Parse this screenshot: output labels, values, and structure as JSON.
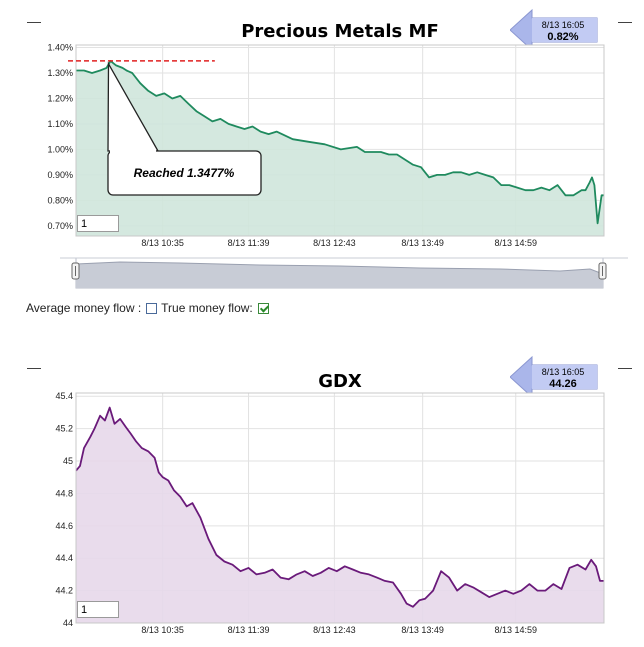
{
  "panel1": {
    "collapse_label": "—",
    "flag": {
      "timestamp": "8/13 16:05",
      "value": "0.82%"
    },
    "zoom_value": "1",
    "callout_text": "Reached 1.3477%",
    "toggles": {
      "avg_label": "Average money flow :",
      "avg_checked": false,
      "true_label": "True money flow:",
      "true_checked": true
    }
  },
  "panel2": {
    "collapse_label": "—",
    "flag": {
      "timestamp": "8/13 16:05",
      "value": "44.26"
    },
    "zoom_value": "1"
  },
  "colors": {
    "mf_line": "#1f8a5e",
    "mf_fill": "#cfe6dc",
    "gdx_line": "#6a1a7a",
    "gdx_fill": "#e7d8ea",
    "ref_line": "#e02020",
    "flag_arrow": "#a9b4e8"
  },
  "chart_data": [
    {
      "type": "area",
      "title": "Precious Metals MF",
      "y_tick_labels": [
        "1.40%",
        "1.30%",
        "1.20%",
        "1.10%",
        "1.00%",
        "0.90%",
        "0.80%",
        "0.70%"
      ],
      "ylim": [
        0.66,
        1.41
      ],
      "x_tick_labels": [
        "8/13 10:35",
        "8/13 11:39",
        "8/13 12:43",
        "8/13 13:49",
        "8/13 14:59"
      ],
      "x_tick_values": [
        10.58,
        11.65,
        12.72,
        13.82,
        14.98
      ],
      "xlim": [
        9.5,
        16.08
      ],
      "grid": true,
      "reference_line": {
        "y": 1.3477,
        "x": [
          9.5,
          11.23
        ]
      },
      "series": [
        {
          "x": [
            9.5,
            9.6,
            9.7,
            9.8,
            9.88,
            9.93,
            10.0,
            10.08,
            10.13,
            10.2,
            10.3,
            10.4,
            10.5,
            10.6,
            10.7,
            10.8,
            10.9,
            11.0,
            11.1,
            11.2,
            11.3,
            11.4,
            11.5,
            11.6,
            11.7,
            11.8,
            11.9,
            12.0,
            12.2,
            12.4,
            12.6,
            12.8,
            13.0,
            13.1,
            13.2,
            13.3,
            13.4,
            13.5,
            13.6,
            13.7,
            13.8,
            13.9,
            14.0,
            14.1,
            14.2,
            14.3,
            14.4,
            14.5,
            14.6,
            14.7,
            14.8,
            14.9,
            15.0,
            15.1,
            15.2,
            15.3,
            15.4,
            15.5,
            15.6,
            15.7,
            15.8,
            15.85,
            15.9,
            15.93,
            15.96,
            16.0,
            16.05,
            16.08
          ],
          "y": [
            1.31,
            1.31,
            1.3,
            1.31,
            1.32,
            1.3477,
            1.33,
            1.32,
            1.31,
            1.3,
            1.26,
            1.23,
            1.21,
            1.22,
            1.2,
            1.21,
            1.18,
            1.15,
            1.13,
            1.11,
            1.12,
            1.1,
            1.09,
            1.08,
            1.09,
            1.07,
            1.06,
            1.07,
            1.04,
            1.03,
            1.02,
            1.0,
            1.01,
            0.99,
            0.99,
            0.99,
            0.98,
            0.98,
            0.96,
            0.94,
            0.93,
            0.89,
            0.9,
            0.9,
            0.91,
            0.91,
            0.9,
            0.91,
            0.9,
            0.89,
            0.86,
            0.86,
            0.85,
            0.84,
            0.84,
            0.85,
            0.84,
            0.86,
            0.82,
            0.82,
            0.84,
            0.84,
            0.87,
            0.89,
            0.86,
            0.71,
            0.82,
            0.82
          ]
        }
      ]
    },
    {
      "type": "area",
      "title": "GDX",
      "y_tick_labels": [
        "45.4",
        "45.2",
        "45",
        "44.8",
        "44.6",
        "44.4",
        "44.2",
        "44"
      ],
      "ylim": [
        44.0,
        45.42
      ],
      "x_tick_labels": [
        "8/13 10:35",
        "8/13 11:39",
        "8/13 12:43",
        "8/13 13:49",
        "8/13 14:59"
      ],
      "x_tick_values": [
        10.58,
        11.65,
        12.72,
        13.82,
        14.98
      ],
      "xlim": [
        9.5,
        16.08
      ],
      "grid": true,
      "series": [
        {
          "x": [
            9.5,
            9.55,
            9.6,
            9.68,
            9.73,
            9.8,
            9.86,
            9.92,
            9.98,
            10.05,
            10.12,
            10.18,
            10.25,
            10.32,
            10.4,
            10.48,
            10.53,
            10.58,
            10.65,
            10.72,
            10.8,
            10.88,
            10.95,
            11.05,
            11.15,
            11.25,
            11.35,
            11.45,
            11.55,
            11.65,
            11.75,
            11.85,
            11.95,
            12.05,
            12.15,
            12.25,
            12.35,
            12.45,
            12.55,
            12.65,
            12.75,
            12.85,
            12.95,
            13.05,
            13.15,
            13.25,
            13.35,
            13.45,
            13.55,
            13.62,
            13.7,
            13.78,
            13.85,
            13.95,
            14.05,
            14.15,
            14.25,
            14.35,
            14.45,
            14.55,
            14.65,
            14.75,
            14.85,
            14.95,
            15.05,
            15.15,
            15.25,
            15.35,
            15.45,
            15.55,
            15.65,
            15.75,
            15.85,
            15.92,
            15.98,
            16.03,
            16.08
          ],
          "y": [
            44.94,
            44.97,
            45.08,
            45.15,
            45.2,
            45.28,
            45.25,
            45.33,
            45.23,
            45.26,
            45.21,
            45.17,
            45.12,
            45.08,
            45.06,
            45.02,
            44.93,
            44.9,
            44.88,
            44.82,
            44.78,
            44.72,
            44.74,
            44.65,
            44.52,
            44.42,
            44.38,
            44.36,
            44.32,
            44.34,
            44.3,
            44.31,
            44.33,
            44.28,
            44.27,
            44.3,
            44.32,
            44.29,
            44.31,
            44.34,
            44.32,
            44.35,
            44.33,
            44.31,
            44.3,
            44.28,
            44.26,
            44.25,
            44.18,
            44.12,
            44.1,
            44.14,
            44.15,
            44.2,
            44.32,
            44.28,
            44.2,
            44.24,
            44.22,
            44.19,
            44.16,
            44.18,
            44.2,
            44.18,
            44.2,
            44.24,
            44.2,
            44.2,
            44.24,
            44.21,
            44.34,
            44.36,
            44.33,
            44.39,
            44.35,
            44.26,
            44.26
          ]
        }
      ]
    }
  ]
}
